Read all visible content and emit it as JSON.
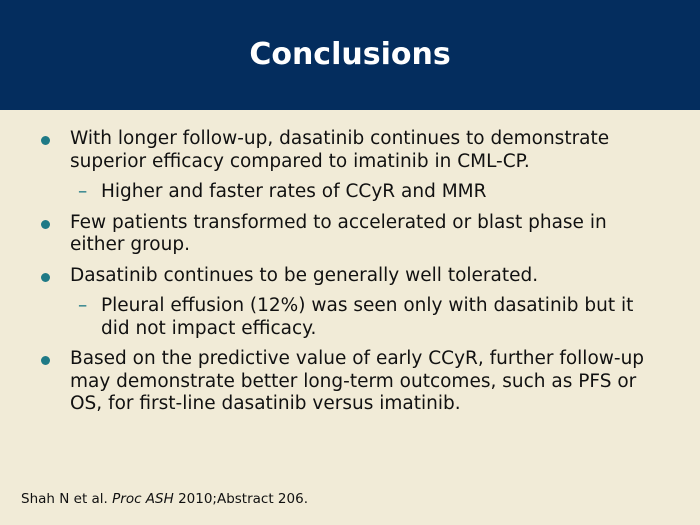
{
  "slide": {
    "title": "Conclusions",
    "colors": {
      "header_bg": "#042d5e",
      "background": "#f1ebd7",
      "bullet": "#1f7a86"
    },
    "bullets": [
      {
        "text": "With longer follow-up, dasatinib continues to demonstrate superior efficacy compared to imatinib in CML-CP."
      },
      {
        "text": "Higher and faster rates of CCyR and MMR"
      },
      {
        "text": "Few patients transformed to accelerated or blast phase in either group."
      },
      {
        "text": "Dasatinib continues to be generally well tolerated."
      },
      {
        "text": "Pleural effusion (12%) was seen only with dasatinib but it did not impact efficacy."
      },
      {
        "text": "Based on the predictive value of early CCyR, further follow-up may demonstrate better long-term outcomes, such as PFS or OS, for first-line dasatinib versus imatinib."
      }
    ],
    "bullet_marker": "–",
    "footer": {
      "authors": "Shah N et al.",
      "journal": "Proc ASH",
      "rest": "2010;Abstract 206."
    }
  }
}
